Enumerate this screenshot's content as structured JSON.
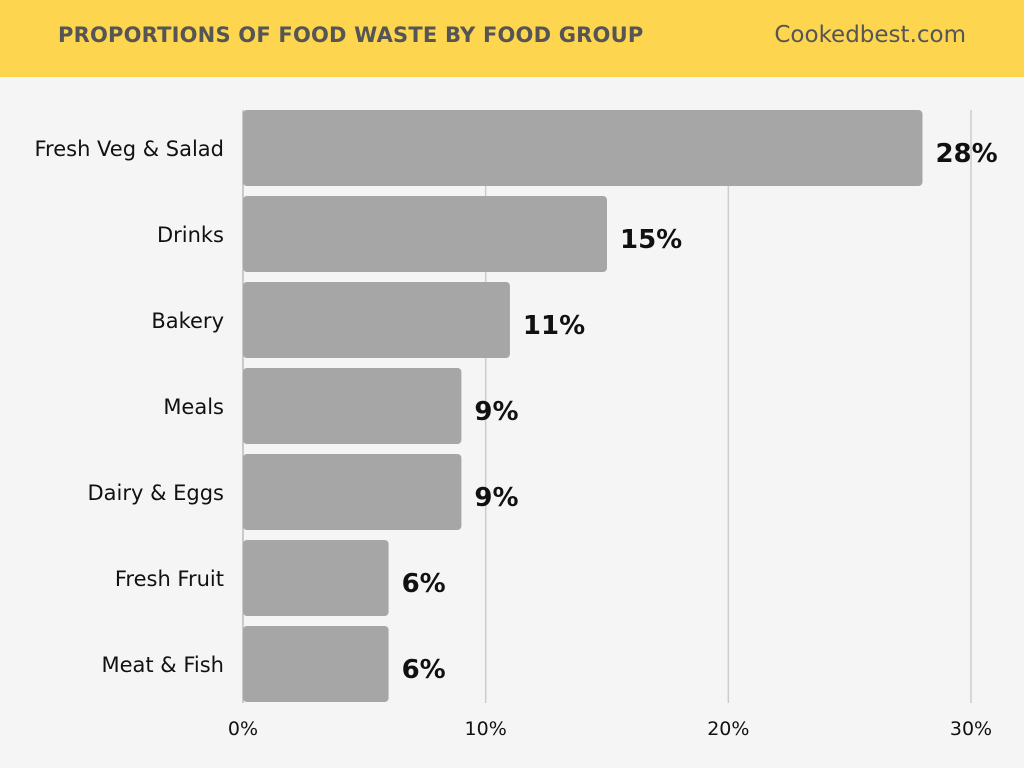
{
  "header": {
    "title": "PROPORTIONS OF FOOD WASTE BY FOOD GROUP",
    "brand": "Cookedbest.com"
  },
  "colors": {
    "header_bg": "#fdd54f",
    "bar": "#a6a6a6",
    "gridline": "#cccccc",
    "background": "#f5f5f5"
  },
  "chart_data": {
    "type": "bar",
    "orientation": "horizontal",
    "title": "PROPORTIONS OF FOOD WASTE BY FOOD GROUP",
    "categories": [
      "Fresh Veg & Salad",
      "Drinks",
      "Bakery",
      "Meals",
      "Dairy & Eggs",
      "Fresh Fruit",
      "Meat & Fish"
    ],
    "values": [
      28,
      15,
      11,
      9,
      9,
      6,
      6
    ],
    "value_labels": [
      "28%",
      "15%",
      "11%",
      "9%",
      "9%",
      "6%",
      "6%"
    ],
    "xlim": [
      0,
      30
    ],
    "xticks": [
      0,
      10,
      20,
      30
    ],
    "xtick_labels": [
      "0%",
      "10%",
      "20%",
      "30%"
    ],
    "grid": true
  }
}
